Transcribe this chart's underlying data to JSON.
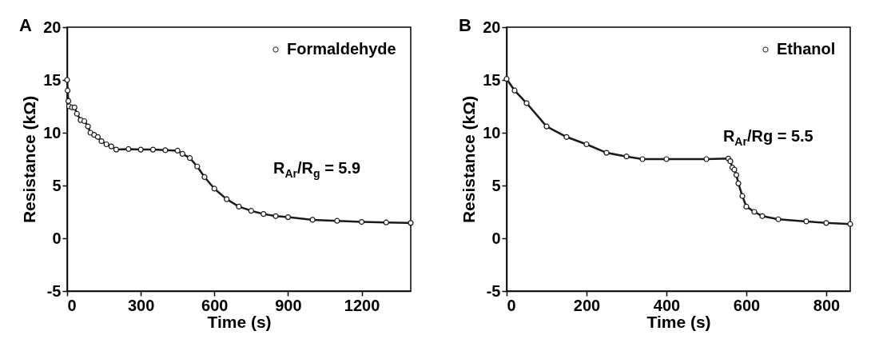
{
  "chart_data": [
    {
      "type": "line",
      "title": "A",
      "xlabel": "Time (s)",
      "ylabel": "Resistance (kΩ)",
      "xlim": [
        0,
        1400
      ],
      "ylim": [
        -5,
        20
      ],
      "xticks": [
        0,
        300,
        600,
        900,
        1200
      ],
      "yticks": [
        -5,
        0,
        5,
        10,
        15,
        20
      ],
      "legend": "top right",
      "marker": "circle",
      "annotations": [
        "R$_{Ar}$/R$_{g}$ = 5.9"
      ],
      "x": [
        0,
        2,
        5,
        8,
        20,
        30,
        40,
        55,
        70,
        85,
        95,
        110,
        125,
        140,
        160,
        180,
        200,
        250,
        300,
        350,
        400,
        450,
        470,
        500,
        530,
        560,
        600,
        650,
        700,
        750,
        800,
        850,
        900,
        1000,
        1100,
        1200,
        1300,
        1400
      ],
      "series": [
        {
          "name": "Formaldehyde",
          "color": "#1a1a1a",
          "values": [
            15,
            14,
            13,
            12.5,
            12.4,
            12.4,
            11.8,
            11.2,
            11.1,
            10.6,
            10,
            9.8,
            9.6,
            9.2,
            8.9,
            8.7,
            8.4,
            8.45,
            8.4,
            8.4,
            8.35,
            8.3,
            8,
            7.6,
            6.8,
            5.8,
            4.7,
            3.7,
            3,
            2.6,
            2.3,
            2.1,
            2,
            1.75,
            1.65,
            1.55,
            1.5,
            1.45
          ]
        }
      ]
    },
    {
      "type": "line",
      "title": "B",
      "xlabel": "Time (s)",
      "ylabel": "Resistance (kΩ)",
      "xlim": [
        0,
        860
      ],
      "ylim": [
        -5,
        20
      ],
      "xticks": [
        0,
        200,
        400,
        600,
        800
      ],
      "yticks": [
        -5,
        0,
        5,
        10,
        15,
        20
      ],
      "legend": "top right",
      "marker": "circle",
      "annotations": [
        "R$_{Ar}$/Rg = 5.5"
      ],
      "x": [
        0,
        20,
        50,
        100,
        150,
        200,
        250,
        300,
        340,
        400,
        500,
        555,
        560,
        565,
        570,
        575,
        580,
        590,
        600,
        620,
        640,
        680,
        750,
        800,
        860
      ],
      "series": [
        {
          "name": "Ethanol",
          "color": "#1a1a1a",
          "values": [
            15.1,
            14,
            12.8,
            10.6,
            9.6,
            8.9,
            8.1,
            7.75,
            7.5,
            7.5,
            7.5,
            7.55,
            7.3,
            6.7,
            6.5,
            6,
            5.2,
            4,
            3,
            2.5,
            2.1,
            1.8,
            1.6,
            1.45,
            1.35
          ]
        }
      ]
    }
  ]
}
